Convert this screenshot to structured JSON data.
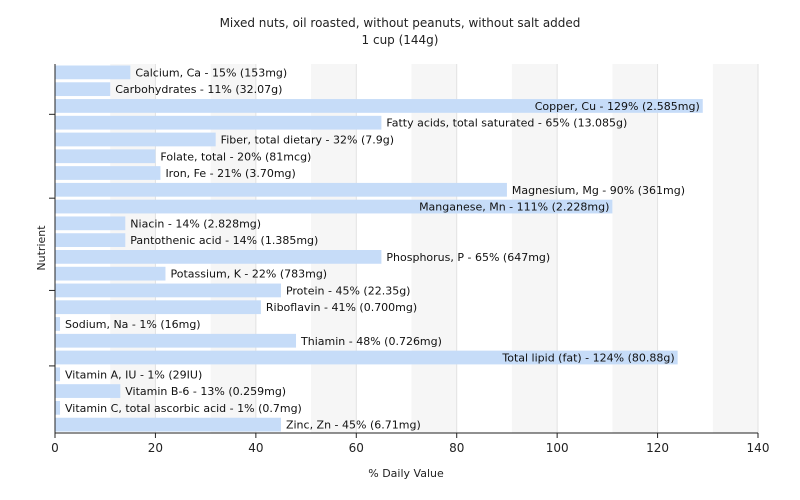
{
  "chart_data": {
    "type": "bar",
    "orientation": "horizontal",
    "title": "Mixed nuts, oil roasted, without peanuts, without salt added",
    "subtitle": "1 cup (144g)",
    "xlabel": "% Daily Value",
    "ylabel": "Nutrient",
    "xlim": [
      0,
      140
    ],
    "xticks": [
      "0",
      "20",
      "40",
      "60",
      "80",
      "100",
      "120",
      "140"
    ],
    "grid": "vertical",
    "bar_color": "#c6dcf8",
    "bars": [
      {
        "name": "Calcium, Ca",
        "value": 15,
        "label": "Calcium, Ca - 15% (153mg)"
      },
      {
        "name": "Carbohydrates",
        "value": 11,
        "label": "Carbohydrates - 11% (32.07g)"
      },
      {
        "name": "Copper, Cu",
        "value": 129,
        "label": "Copper, Cu - 129% (2.585mg)"
      },
      {
        "name": "Fatty acids, total saturated",
        "value": 65,
        "label": "Fatty acids, total saturated - 65% (13.085g)"
      },
      {
        "name": "Fiber, total dietary",
        "value": 32,
        "label": "Fiber, total dietary - 32% (7.9g)"
      },
      {
        "name": "Folate, total",
        "value": 20,
        "label": "Folate, total - 20% (81mcg)"
      },
      {
        "name": "Iron, Fe",
        "value": 21,
        "label": "Iron, Fe - 21% (3.70mg)"
      },
      {
        "name": "Magnesium, Mg",
        "value": 90,
        "label": "Magnesium, Mg - 90% (361mg)"
      },
      {
        "name": "Manganese, Mn",
        "value": 111,
        "label": "Manganese, Mn - 111% (2.228mg)"
      },
      {
        "name": "Niacin",
        "value": 14,
        "label": "Niacin - 14% (2.828mg)"
      },
      {
        "name": "Pantothenic acid",
        "value": 14,
        "label": "Pantothenic acid - 14% (1.385mg)"
      },
      {
        "name": "Phosphorus, P",
        "value": 65,
        "label": "Phosphorus, P - 65% (647mg)"
      },
      {
        "name": "Potassium, K",
        "value": 22,
        "label": "Potassium, K - 22% (783mg)"
      },
      {
        "name": "Protein",
        "value": 45,
        "label": "Protein - 45% (22.35g)"
      },
      {
        "name": "Riboflavin",
        "value": 41,
        "label": "Riboflavin - 41% (0.700mg)"
      },
      {
        "name": "Sodium, Na",
        "value": 1,
        "label": "Sodium, Na - 1% (16mg)"
      },
      {
        "name": "Thiamin",
        "value": 48,
        "label": "Thiamin - 48% (0.726mg)"
      },
      {
        "name": "Total lipid (fat)",
        "value": 124,
        "label": "Total lipid (fat) - 124% (80.88g)"
      },
      {
        "name": "Vitamin A, IU",
        "value": 1,
        "label": "Vitamin A, IU - 1% (29IU)"
      },
      {
        "name": "Vitamin B-6",
        "value": 13,
        "label": "Vitamin B-6 - 13% (0.259mg)"
      },
      {
        "name": "Vitamin C, total ascorbic acid",
        "value": 1,
        "label": "Vitamin C, total ascorbic acid - 1% (0.7mg)"
      },
      {
        "name": "Zinc, Zn",
        "value": 45,
        "label": "Zinc, Zn - 45% (6.71mg)"
      }
    ]
  }
}
